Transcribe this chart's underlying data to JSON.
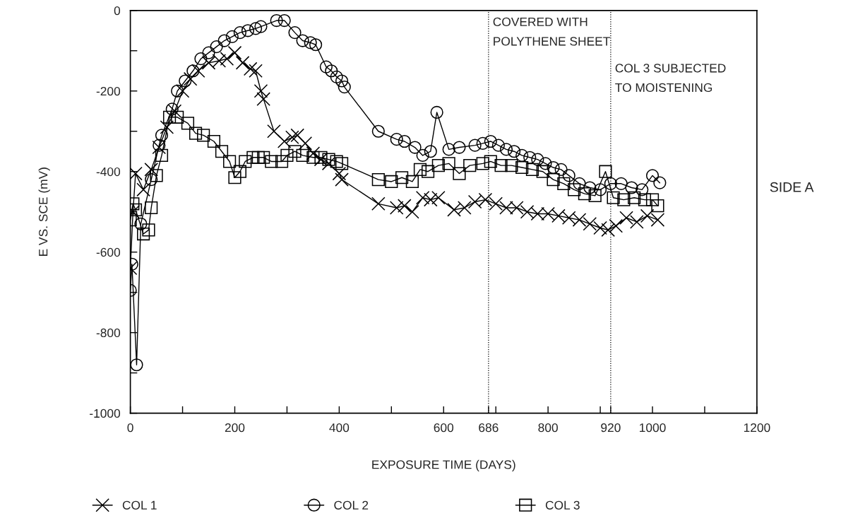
{
  "chart_data": {
    "type": "line",
    "xlabel": "EXPOSURE TIME (DAYS)",
    "ylabel": "E VS. SCE (mV)",
    "annotations": [
      "SIDE A"
    ],
    "xlim": [
      0,
      1200
    ],
    "ylim": [
      -1000,
      0
    ],
    "xticks": [
      0,
      {
        "value": 100,
        "label": null
      },
      200,
      {
        "value": 300,
        "label": null
      },
      400,
      {
        "value": 500,
        "label": null
      },
      600,
      686,
      {
        "value": 700,
        "label": null
      },
      800,
      {
        "value": 900,
        "label": null
      },
      920,
      1000,
      {
        "value": 1100,
        "label": null
      },
      1200
    ],
    "yticks": [
      0,
      {
        "value": -100,
        "label": null
      },
      -200,
      {
        "value": -300,
        "label": null
      },
      -400,
      {
        "value": -500,
        "label": null
      },
      -600,
      {
        "value": -700,
        "label": null
      },
      -800,
      {
        "value": -900,
        "label": null
      },
      -1000
    ],
    "ref_lines": [
      {
        "axis": "x",
        "value": 686,
        "label": "COVERED WITH\nPOLYTHENE SHEET",
        "line_style": "dotted",
        "color": "#000000"
      },
      {
        "axis": "x",
        "value": 920,
        "label": "COL 3 SUBJECTED\nTO MOISTENING",
        "line_style": "dotted",
        "color": "#000000"
      }
    ],
    "grid": false,
    "legend": "bottom",
    "line_style": "solid",
    "series": [
      {
        "name": "COL 1",
        "color": "#000000",
        "marker": "cross",
        "x": [
          0,
          5,
          10,
          25,
          40,
          55,
          70,
          85,
          100,
          115,
          130,
          150,
          170,
          185,
          200,
          215,
          230,
          240,
          250,
          255,
          275,
          295,
          310,
          320,
          335,
          350,
          365,
          380,
          400,
          405,
          475,
          510,
          525,
          540,
          560,
          575,
          590,
          620,
          640,
          660,
          680,
          700,
          720,
          740,
          760,
          780,
          800,
          820,
          840,
          860,
          880,
          900,
          915,
          930,
          950,
          970,
          990,
          1010
        ],
        "values": [
          -640,
          -500,
          -405,
          -445,
          -395,
          -340,
          -290,
          -250,
          -200,
          -170,
          -150,
          -130,
          -125,
          -120,
          -105,
          -130,
          -145,
          -150,
          -200,
          -220,
          -300,
          -325,
          -315,
          -310,
          -330,
          -355,
          -370,
          -380,
          -405,
          -420,
          -480,
          -490,
          -485,
          -500,
          -465,
          -470,
          -465,
          -495,
          -490,
          -475,
          -470,
          -480,
          -490,
          -490,
          -500,
          -505,
          -505,
          -510,
          -515,
          -520,
          -530,
          -540,
          -545,
          -535,
          -515,
          -525,
          -510,
          -520
        ]
      },
      {
        "name": "COL 2",
        "color": "#000000",
        "marker": "circle",
        "x": [
          0,
          3,
          12,
          20,
          40,
          55,
          60,
          80,
          90,
          105,
          120,
          135,
          150,
          165,
          180,
          195,
          210,
          225,
          240,
          250,
          280,
          295,
          315,
          330,
          345,
          355,
          375,
          385,
          395,
          405,
          410,
          475,
          510,
          525,
          545,
          560,
          575,
          587,
          610,
          630,
          660,
          675,
          690,
          705,
          720,
          735,
          750,
          765,
          780,
          795,
          810,
          825,
          840,
          860,
          880,
          900,
          920,
          940,
          960,
          980,
          1000,
          1014
        ],
        "values": [
          -695,
          -630,
          -880,
          -530,
          -420,
          -335,
          -310,
          -245,
          -200,
          -175,
          -150,
          -120,
          -105,
          -90,
          -75,
          -65,
          -55,
          -50,
          -45,
          -40,
          -25,
          -25,
          -55,
          -75,
          -80,
          -85,
          -140,
          -150,
          -165,
          -175,
          -190,
          -300,
          -320,
          -325,
          -340,
          -360,
          -350,
          -253,
          -345,
          -340,
          -335,
          -330,
          -325,
          -335,
          -345,
          -350,
          -360,
          -365,
          -370,
          -380,
          -390,
          -395,
          -410,
          -430,
          -440,
          -445,
          -430,
          -430,
          -440,
          -445,
          -410,
          -428
        ]
      },
      {
        "name": "COL 3",
        "color": "#000000",
        "marker": "square",
        "x": [
          0,
          5,
          10,
          25,
          35,
          40,
          50,
          60,
          75,
          90,
          110,
          125,
          140,
          160,
          175,
          190,
          200,
          210,
          220,
          235,
          245,
          255,
          270,
          290,
          300,
          315,
          330,
          350,
          365,
          380,
          395,
          405,
          475,
          500,
          520,
          540,
          555,
          570,
          590,
          610,
          630,
          650,
          675,
          690,
          710,
          730,
          750,
          770,
          790,
          810,
          830,
          850,
          870,
          890,
          910,
          925,
          945,
          965,
          985,
          1000,
          1010
        ],
        "values": [
          -520,
          -480,
          -495,
          -555,
          -545,
          -490,
          -410,
          -360,
          -265,
          -265,
          -280,
          -305,
          -310,
          -325,
          -350,
          -375,
          -415,
          -400,
          -375,
          -365,
          -365,
          -365,
          -375,
          -375,
          -360,
          -350,
          -360,
          -365,
          -365,
          -370,
          -375,
          -380,
          -420,
          -425,
          -415,
          -425,
          -395,
          -400,
          -385,
          -380,
          -405,
          -385,
          -380,
          -375,
          -385,
          -385,
          -390,
          -395,
          -400,
          -420,
          -430,
          -445,
          -455,
          -460,
          -400,
          -465,
          -470,
          -465,
          -470,
          -470,
          -485
        ]
      }
    ]
  }
}
